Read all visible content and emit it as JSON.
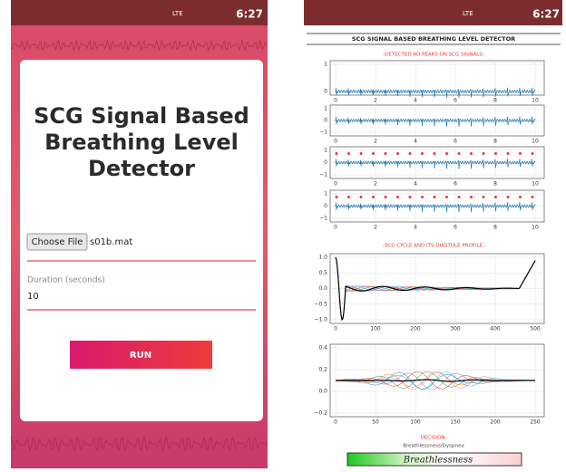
{
  "left": {
    "status_time": "6:27",
    "status_net": "LTE",
    "title_lines": [
      "SCG Signal Based",
      "Breathing Level",
      "Detector"
    ],
    "file_button": "Choose File",
    "file_name": "s01b.mat",
    "duration_label": "Duration (seconds)",
    "duration_value": "10",
    "run_button": "RUN"
  },
  "right": {
    "status_time": "6:27",
    "status_net": "LTE",
    "title": "SCG SIGNAL BASED BREATHING LEVEL DETECTOR",
    "section1": "-DETECTED AO PEAKS ON SCG SIGNALS-",
    "section2": "-SCG CYCLE AND ITS DIASTOLE PROFILE-",
    "plots": [
      {
        "yticks": [
          "1",
          "0"
        ],
        "xticks": [
          "0",
          "2",
          "4",
          "6",
          "8",
          "10"
        ]
      },
      {
        "yticks": [
          "1",
          "0",
          "−1"
        ],
        "xticks": [
          "0",
          "2",
          "4",
          "6",
          "8",
          "10"
        ]
      },
      {
        "yticks": [
          "1",
          "0",
          "−1"
        ],
        "xticks": [
          "0",
          "2",
          "4",
          "6",
          "8",
          "10"
        ]
      },
      {
        "yticks": [
          "1",
          "0",
          "−1"
        ],
        "xticks": [
          "0",
          "2",
          "4",
          "6",
          "8",
          "10"
        ]
      },
      {
        "yticks": [
          "1.0",
          "0.5",
          "0.0",
          "−0.5",
          "−1.0"
        ],
        "xticks": [
          "0",
          "100",
          "200",
          "300",
          "400",
          "500"
        ]
      },
      {
        "yticks": [
          "0.4",
          "0.2",
          "0.0",
          "−0.2"
        ],
        "xticks": [
          "0",
          "50",
          "100",
          "150",
          "200",
          "250"
        ]
      }
    ],
    "decision_label": "DECISION:",
    "decision_sub": "Breathlessness/Dyspnea",
    "decision_value": "Breathlessness"
  }
}
